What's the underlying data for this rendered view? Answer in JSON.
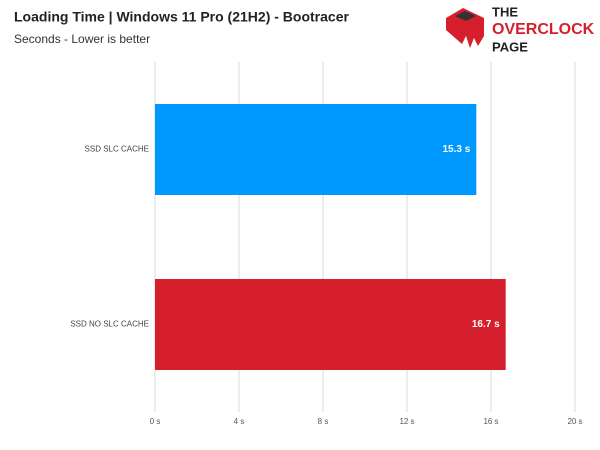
{
  "chart_data": {
    "type": "bar",
    "orientation": "horizontal",
    "title": "Loading Time | Windows 11 Pro (21H2) - Bootracer",
    "subtitle": "Seconds - Lower is better",
    "categories": [
      "SSD SLC CACHE",
      "SSD NO SLC CACHE"
    ],
    "values": [
      15.3,
      16.7
    ],
    "value_labels": [
      "15.3 s",
      "16.7 s"
    ],
    "colors": [
      "#0099ff",
      "#d61f2c"
    ],
    "xlim": [
      0,
      20
    ],
    "xticks": [
      {
        "value": 0,
        "label": "0 s"
      },
      {
        "value": 4,
        "label": "4 s"
      },
      {
        "value": 8,
        "label": "8 s"
      },
      {
        "value": 12,
        "label": "12 s"
      },
      {
        "value": 16,
        "label": "16 s"
      },
      {
        "value": 20,
        "label": "20 s"
      }
    ],
    "grid": true
  },
  "logo": {
    "line1": "THE",
    "line2": "OVERCLOCK",
    "line3": "PAGE"
  }
}
